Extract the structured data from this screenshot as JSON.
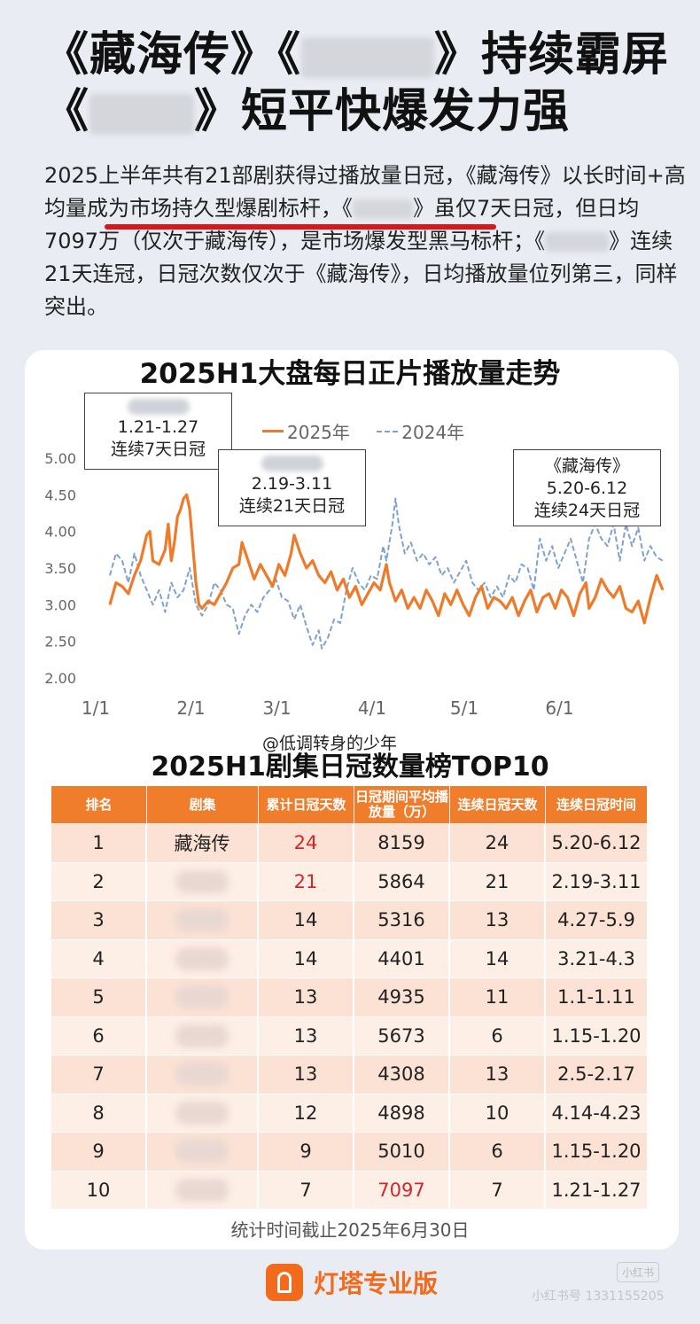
{
  "headline": {
    "line1_a": "《藏海传》《",
    "line1_b": "》持续霸屏",
    "line2_a": "《",
    "line2_b": "》短平快爆发力强"
  },
  "intro": {
    "text1": "2025上半年共有21部剧获得过播放量日冠，《藏海传》以长时间+高均量成为市场持久型爆剧标杆，《",
    "text2": "》虽仅7天日冠，但日均7097万（仅次于藏海传），是市场爆发型黑马标杆；《",
    "text3": "》连续21天连冠，日冠次数仅次于《藏海传》，日均播放量位列第三，同样突出。"
  },
  "chart_data": {
    "type": "line",
    "title": "2025H1大盘每日正片播放量走势",
    "xlabel": "",
    "ylabel": "",
    "x_ticks": [
      "1/1",
      "2/1",
      "3/1",
      "4/1",
      "5/1",
      "6/1"
    ],
    "y_ticks": [
      "2.00",
      "2.50",
      "3.00",
      "3.50",
      "4.00",
      "4.50",
      "5.00"
    ],
    "ylim": [
      2.0,
      5.0
    ],
    "x_range_days": [
      1,
      181
    ],
    "legend": [
      "2025年",
      "2024年"
    ],
    "legend_position": "top-center",
    "grid": false,
    "series": [
      {
        "name": "2025年",
        "color": "#ee7a2a",
        "style": "solid",
        "points": [
          [
            1,
            3.0
          ],
          [
            3,
            3.3
          ],
          [
            5,
            3.25
          ],
          [
            7,
            3.15
          ],
          [
            9,
            3.4
          ],
          [
            11,
            3.6
          ],
          [
            13,
            3.95
          ],
          [
            14,
            4.0
          ],
          [
            15,
            3.6
          ],
          [
            17,
            3.55
          ],
          [
            19,
            3.75
          ],
          [
            20,
            4.1
          ],
          [
            21,
            3.6
          ],
          [
            22,
            3.85
          ],
          [
            23,
            4.2
          ],
          [
            24,
            4.3
          ],
          [
            25,
            4.45
          ],
          [
            26,
            4.5
          ],
          [
            27,
            4.3
          ],
          [
            28,
            3.8
          ],
          [
            29,
            3.3
          ],
          [
            30,
            3.0
          ],
          [
            31,
            2.95
          ],
          [
            33,
            3.05
          ],
          [
            35,
            3.0
          ],
          [
            37,
            3.15
          ],
          [
            39,
            3.3
          ],
          [
            41,
            3.5
          ],
          [
            43,
            3.55
          ],
          [
            44,
            3.85
          ],
          [
            46,
            3.6
          ],
          [
            48,
            3.35
          ],
          [
            50,
            3.55
          ],
          [
            52,
            3.4
          ],
          [
            54,
            3.25
          ],
          [
            56,
            3.55
          ],
          [
            58,
            3.4
          ],
          [
            60,
            3.7
          ],
          [
            61,
            3.95
          ],
          [
            63,
            3.7
          ],
          [
            65,
            3.5
          ],
          [
            67,
            3.6
          ],
          [
            69,
            3.4
          ],
          [
            71,
            3.3
          ],
          [
            73,
            3.45
          ],
          [
            75,
            3.2
          ],
          [
            77,
            3.35
          ],
          [
            79,
            3.1
          ],
          [
            81,
            3.25
          ],
          [
            83,
            3.0
          ],
          [
            85,
            3.15
          ],
          [
            87,
            3.3
          ],
          [
            89,
            3.2
          ],
          [
            91,
            3.55
          ],
          [
            92,
            3.3
          ],
          [
            94,
            3.05
          ],
          [
            96,
            3.2
          ],
          [
            98,
            2.95
          ],
          [
            100,
            3.1
          ],
          [
            102,
            2.95
          ],
          [
            104,
            3.2
          ],
          [
            106,
            3.05
          ],
          [
            108,
            2.85
          ],
          [
            110,
            3.15
          ],
          [
            112,
            3.0
          ],
          [
            114,
            3.2
          ],
          [
            116,
            3.0
          ],
          [
            118,
            2.85
          ],
          [
            120,
            3.1
          ],
          [
            122,
            3.25
          ],
          [
            124,
            2.95
          ],
          [
            126,
            3.1
          ],
          [
            128,
            3.05
          ],
          [
            130,
            2.95
          ],
          [
            132,
            3.1
          ],
          [
            134,
            2.85
          ],
          [
            136,
            3.05
          ],
          [
            138,
            3.2
          ],
          [
            140,
            2.9
          ],
          [
            142,
            3.1
          ],
          [
            144,
            3.15
          ],
          [
            146,
            2.95
          ],
          [
            148,
            3.2
          ],
          [
            150,
            3.1
          ],
          [
            152,
            2.85
          ],
          [
            154,
            3.15
          ],
          [
            156,
            3.3
          ],
          [
            157,
            2.95
          ],
          [
            159,
            3.1
          ],
          [
            161,
            3.35
          ],
          [
            163,
            3.2
          ],
          [
            165,
            3.1
          ],
          [
            167,
            3.25
          ],
          [
            169,
            2.95
          ],
          [
            171,
            2.9
          ],
          [
            173,
            3.05
          ],
          [
            175,
            2.75
          ],
          [
            177,
            3.1
          ],
          [
            179,
            3.4
          ],
          [
            181,
            3.2
          ]
        ]
      },
      {
        "name": "2024年",
        "color": "#7fa1cf",
        "style": "dashed",
        "points": [
          [
            1,
            3.4
          ],
          [
            3,
            3.7
          ],
          [
            5,
            3.6
          ],
          [
            7,
            3.3
          ],
          [
            9,
            3.7
          ],
          [
            11,
            3.4
          ],
          [
            13,
            3.2
          ],
          [
            15,
            3.0
          ],
          [
            17,
            3.2
          ],
          [
            19,
            2.9
          ],
          [
            21,
            3.3
          ],
          [
            23,
            3.1
          ],
          [
            25,
            3.2
          ],
          [
            27,
            3.5
          ],
          [
            29,
            3.0
          ],
          [
            31,
            2.85
          ],
          [
            33,
            3.0
          ],
          [
            35,
            3.3
          ],
          [
            37,
            3.2
          ],
          [
            39,
            3.0
          ],
          [
            41,
            2.95
          ],
          [
            43,
            2.6
          ],
          [
            45,
            2.85
          ],
          [
            47,
            3.0
          ],
          [
            49,
            2.9
          ],
          [
            51,
            3.1
          ],
          [
            53,
            3.2
          ],
          [
            55,
            3.35
          ],
          [
            57,
            3.1
          ],
          [
            59,
            3.05
          ],
          [
            61,
            2.8
          ],
          [
            63,
            3.0
          ],
          [
            65,
            2.7
          ],
          [
            67,
            2.45
          ],
          [
            69,
            2.65
          ],
          [
            70,
            2.4
          ],
          [
            72,
            2.55
          ],
          [
            74,
            2.8
          ],
          [
            76,
            2.75
          ],
          [
            78,
            3.2
          ],
          [
            80,
            3.5
          ],
          [
            82,
            3.3
          ],
          [
            84,
            3.2
          ],
          [
            86,
            3.4
          ],
          [
            88,
            3.35
          ],
          [
            90,
            3.8
          ],
          [
            91,
            3.6
          ],
          [
            93,
            4.1
          ],
          [
            94,
            4.45
          ],
          [
            95,
            4.1
          ],
          [
            97,
            3.7
          ],
          [
            99,
            3.85
          ],
          [
            101,
            3.6
          ],
          [
            103,
            3.7
          ],
          [
            105,
            3.55
          ],
          [
            107,
            3.65
          ],
          [
            109,
            3.4
          ],
          [
            111,
            3.5
          ],
          [
            113,
            3.3
          ],
          [
            115,
            3.45
          ],
          [
            117,
            3.6
          ],
          [
            119,
            3.3
          ],
          [
            121,
            3.2
          ],
          [
            123,
            3.3
          ],
          [
            125,
            3.1
          ],
          [
            127,
            3.25
          ],
          [
            129,
            3.1
          ],
          [
            131,
            3.4
          ],
          [
            133,
            3.3
          ],
          [
            135,
            3.55
          ],
          [
            137,
            3.5
          ],
          [
            139,
            3.2
          ],
          [
            141,
            3.9
          ],
          [
            143,
            3.6
          ],
          [
            145,
            3.8
          ],
          [
            147,
            3.5
          ],
          [
            149,
            3.7
          ],
          [
            151,
            3.9
          ],
          [
            153,
            3.6
          ],
          [
            155,
            3.3
          ],
          [
            157,
            3.9
          ],
          [
            159,
            4.1
          ],
          [
            161,
            3.9
          ],
          [
            163,
            3.8
          ],
          [
            165,
            4.1
          ],
          [
            167,
            3.6
          ],
          [
            169,
            4.1
          ],
          [
            171,
            3.8
          ],
          [
            173,
            4.05
          ],
          [
            175,
            3.6
          ],
          [
            177,
            3.8
          ],
          [
            179,
            3.65
          ],
          [
            181,
            3.6
          ]
        ]
      }
    ],
    "annotations": [
      {
        "label": "1.21-1.27",
        "text": "连续7天日冠"
      },
      {
        "label": "2.19-3.11",
        "text": "连续21天日冠"
      },
      {
        "title": "《藏海传》",
        "label": "5.20-6.12",
        "text": "连续24天日冠"
      }
    ]
  },
  "table": {
    "title": "2025H1剧集日冠数量榜TOP10",
    "headers": [
      "排名",
      "剧集",
      "累计日冠天数",
      "日冠期间平均播放量（万）",
      "连续日冠天数",
      "连续日冠时间"
    ],
    "rows": [
      [
        "1",
        "藏海传",
        "24",
        "8159",
        "24",
        "5.20-6.12"
      ],
      [
        "2",
        "",
        "21",
        "5864",
        "21",
        "2.19-3.11"
      ],
      [
        "3",
        "",
        "14",
        "5316",
        "13",
        "4.27-5.9"
      ],
      [
        "4",
        "",
        "14",
        "4401",
        "14",
        "3.21-4.3"
      ],
      [
        "5",
        "",
        "13",
        "4935",
        "11",
        "1.1-1.11"
      ],
      [
        "6",
        "",
        "13",
        "5673",
        "6",
        "1.15-1.20"
      ],
      [
        "7",
        "",
        "13",
        "4308",
        "13",
        "2.5-2.17"
      ],
      [
        "8",
        "",
        "12",
        "4898",
        "10",
        "4.14-4.23"
      ],
      [
        "9",
        "",
        "9",
        "5010",
        "6",
        "1.15-1.20"
      ],
      [
        "10",
        "",
        "7",
        "7097",
        "7",
        "1.21-1.27"
      ]
    ]
  },
  "watermark_mid": "@低调转身的少年",
  "footnote": "统计时间截止2025年6月30日",
  "brand": "灯塔专业版",
  "watermark_corner": "小红书",
  "watermark_bottom": "小红书号 1331155205",
  "colors": {
    "accent": "#f07d2b",
    "series2024": "#7fa1cf",
    "highlight_red": "#d3262a"
  }
}
